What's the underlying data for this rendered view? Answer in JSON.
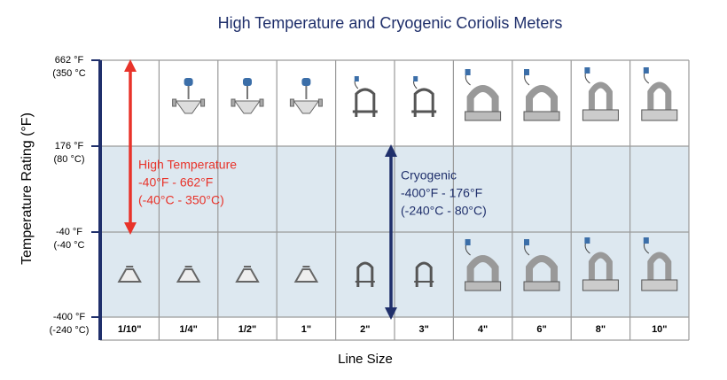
{
  "title": "High Temperature and Cryogenic Coriolis Meters",
  "y_axis_label": "Temperature Rating (°F)",
  "x_axis_label": "Line Size",
  "y_levels": [
    {
      "f": "662 °F",
      "c": "(350 °C"
    },
    {
      "f": "176 °F",
      "c": "(80 °C)"
    },
    {
      "f": "-40 °F",
      "c": "(-40 °C"
    },
    {
      "f": "-400 °F",
      "c": "(-240 °C)"
    }
  ],
  "categories": [
    "1/10\"",
    "1/4\"",
    "1/2\"",
    "1\"",
    "2\"",
    "3\"",
    "4\"",
    "6\"",
    "8\"",
    "10\""
  ],
  "annotations": [
    {
      "lines": [
        "High Temperature",
        "-40°F - 662°F",
        "(-40°C - 350°C)"
      ]
    },
    {
      "lines": [
        "Cryogenic",
        "-400°F - 176°F",
        "(-240°C - 80°C)"
      ]
    }
  ]
}
